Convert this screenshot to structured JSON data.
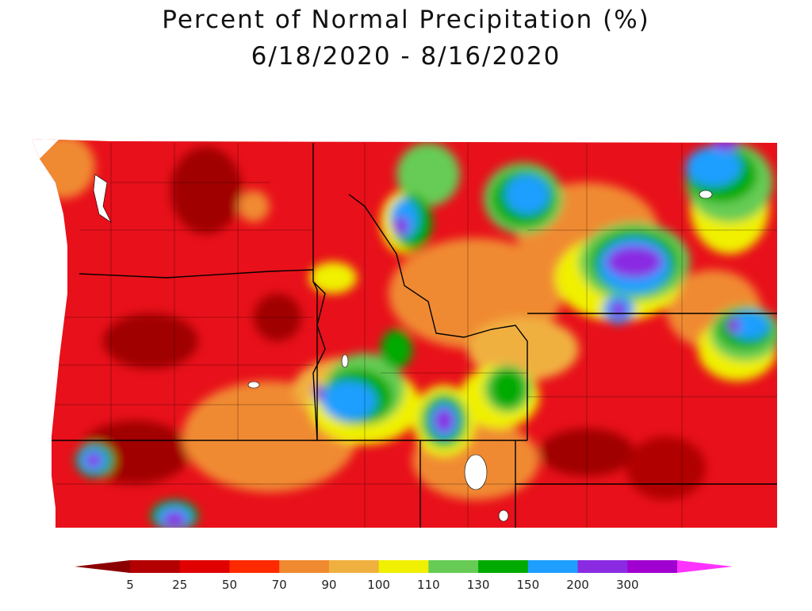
{
  "title": {
    "line1": "Percent of Normal Precipitation (%)",
    "line2": "6/18/2020 - 8/16/2020"
  },
  "colors": {
    "under_arrow": "#8b0000",
    "over_arrow": "#ff33ff",
    "border_line": "#000000",
    "water": "#ffffff"
  },
  "legend": {
    "bins": [
      {
        "color": "#b30000"
      },
      {
        "color": "#e00000"
      },
      {
        "color": "#ff2a00"
      },
      {
        "color": "#f08a30"
      },
      {
        "color": "#f0b040"
      },
      {
        "color": "#f0f000"
      },
      {
        "color": "#66cc55"
      },
      {
        "color": "#00aa00"
      },
      {
        "color": "#1e9fff"
      },
      {
        "color": "#8a2be2"
      },
      {
        "color": "#a000d0"
      }
    ],
    "ticks": [
      "5",
      "25",
      "50",
      "70",
      "90",
      "100",
      "110",
      "130",
      "150",
      "200",
      "300"
    ]
  }
}
